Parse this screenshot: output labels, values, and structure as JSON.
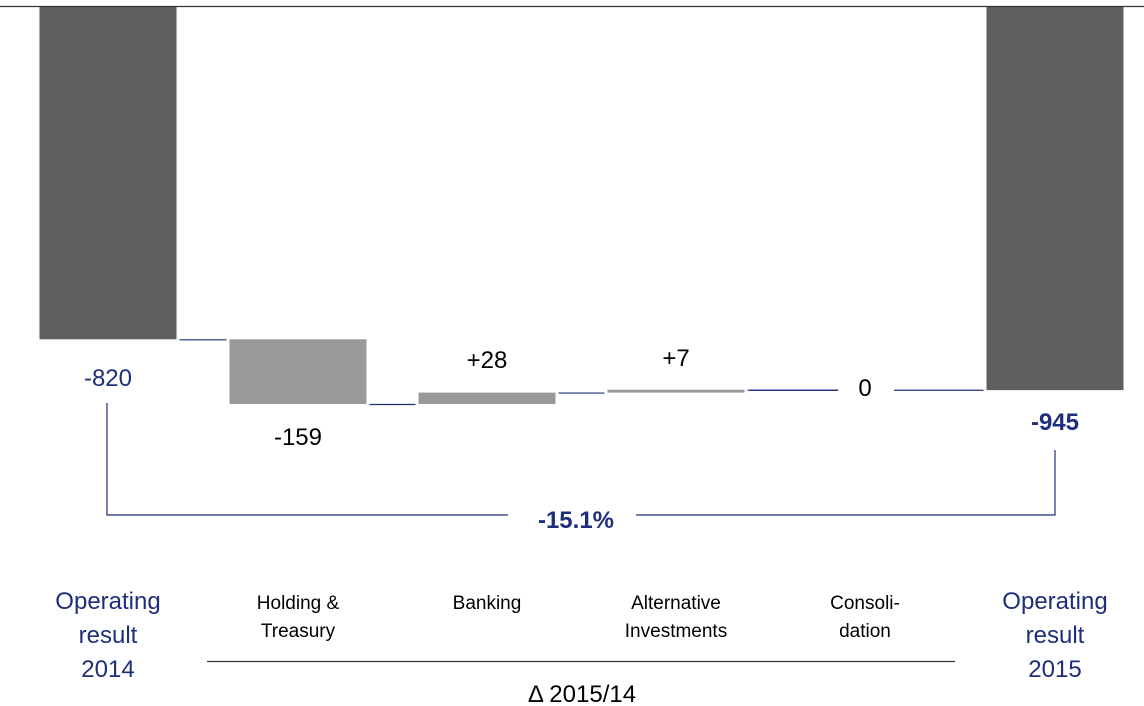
{
  "chart_data": {
    "type": "bar",
    "subtype": "waterfall",
    "categories": [
      [
        "Operating",
        "result",
        "2014"
      ],
      [
        "Holding &",
        "Treasury"
      ],
      [
        "Banking"
      ],
      [
        "Alternative",
        "Investments"
      ],
      [
        "Consoli-",
        "dation"
      ],
      [
        "Operating",
        "result",
        "2015"
      ]
    ],
    "values": [
      -820,
      -159,
      28,
      7,
      0,
      -945
    ],
    "value_labels": [
      "-820",
      "-159",
      "+28",
      "+7",
      "0",
      "-945"
    ],
    "bar_kind": [
      "total",
      "delta",
      "delta",
      "delta",
      "delta",
      "total"
    ],
    "group_label": "Δ 2015/14",
    "change_label": "-15.1%",
    "colors": {
      "total": "#5f5f5f",
      "delta": "#999999",
      "connector": "#1f2e7a",
      "accent_text": "#1f2e7a",
      "axis": "#333333"
    }
  }
}
